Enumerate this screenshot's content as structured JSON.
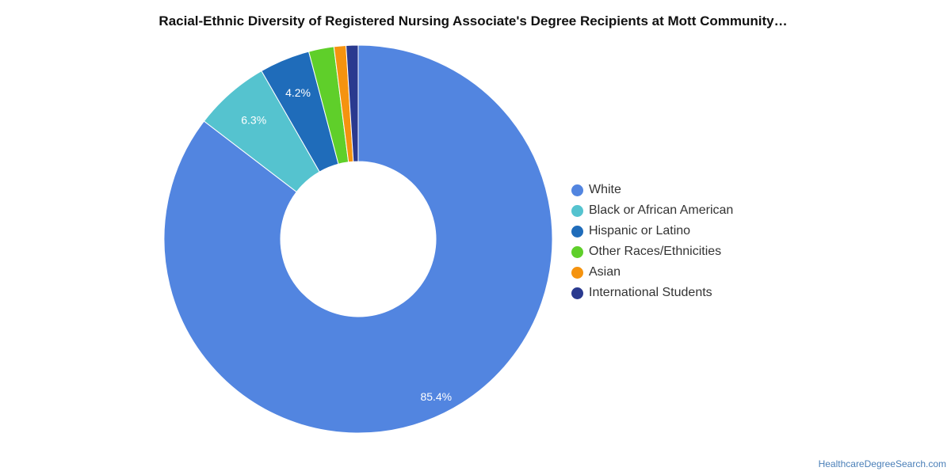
{
  "chart_data": {
    "type": "pie",
    "variant": "donut",
    "title": "Racial-Ethnic Diversity of Registered Nursing Associate's Degree Recipients at Mott Community…",
    "legend_position": "right",
    "series": [
      {
        "name": "White",
        "value": 85.4,
        "label": "85.4%",
        "color": "#5285e0"
      },
      {
        "name": "Black or African American",
        "value": 6.3,
        "label": "6.3%",
        "color": "#55c3cf"
      },
      {
        "name": "Hispanic or Latino",
        "value": 4.2,
        "label": "4.2%",
        "color": "#1f6cba"
      },
      {
        "name": "Other Races/Ethnicities",
        "value": 2.1,
        "label": "",
        "color": "#5fcf2a"
      },
      {
        "name": "Asian",
        "value": 1.0,
        "label": "",
        "color": "#f5930f"
      },
      {
        "name": "International Students",
        "value": 1.0,
        "label": "",
        "color": "#2a3a8f"
      }
    ]
  },
  "footer": {
    "source_link": "HealthcareDegreeSearch.com"
  }
}
